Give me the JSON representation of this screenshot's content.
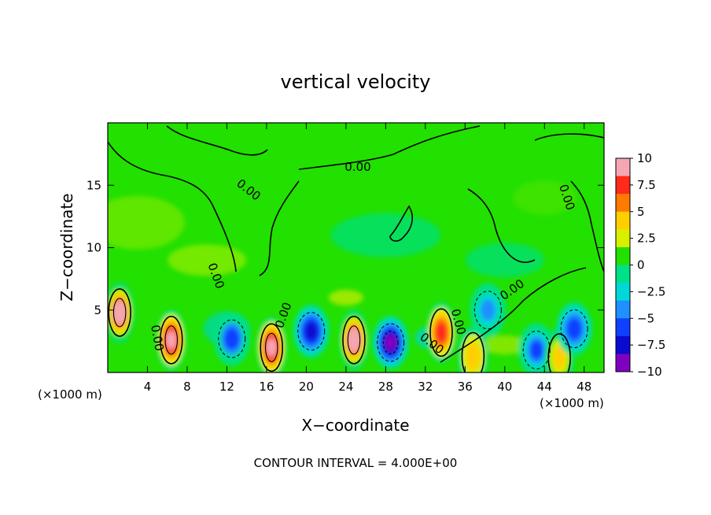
{
  "chart_data": {
    "type": "heatmap",
    "title": "vertical velocity",
    "xlabel": "X−coordinate",
    "ylabel": "Z−coordinate",
    "x_unit_label": "(×1000 m)",
    "z_unit_label": "(×1000 m)",
    "xlim": [
      0,
      50
    ],
    "ylim": [
      0,
      20
    ],
    "x_ticks": [
      4,
      8,
      12,
      16,
      20,
      24,
      28,
      32,
      36,
      40,
      44,
      48
    ],
    "y_ticks": [
      5,
      10,
      15
    ],
    "colorbar": {
      "range": [
        -10,
        10
      ],
      "tick_values": [
        10,
        7.5,
        5,
        2.5,
        0,
        -2.5,
        -5,
        -7.5,
        -10
      ],
      "tick_labels": [
        "10",
        "7.5",
        "5",
        "2.5",
        "0",
        "−2.5",
        "−5",
        "−7.5",
        "−10"
      ],
      "colors": [
        "#f4a6b4",
        "#ff2a1a",
        "#ff7a00",
        "#ffcf00",
        "#d8f000",
        "#22e000",
        "#00e088",
        "#00d8d8",
        "#1e90ff",
        "#1040ff",
        "#0a0ad0",
        "#8000c0"
      ]
    },
    "contour_labels": [
      "0.00",
      "0.00",
      "0.00",
      "0.00",
      "0.00",
      "0.00",
      "0.00",
      "0.00",
      "0.00"
    ],
    "note": "CONTOUR INTERVAL = 4.000E+00",
    "features": [
      {
        "kind": "updraft",
        "x": 1.2,
        "z": 4.8,
        "peak": 10
      },
      {
        "kind": "updraft",
        "x": 6.4,
        "z": 2.6,
        "peak": 8.5
      },
      {
        "kind": "downdraft",
        "x": 12.5,
        "z": 2.7,
        "peak": -5
      },
      {
        "kind": "updraft",
        "x": 16.5,
        "z": 2.0,
        "peak": 8.5
      },
      {
        "kind": "downdraft",
        "x": 20.5,
        "z": 3.3,
        "peak": -7.5
      },
      {
        "kind": "updraft",
        "x": 24.8,
        "z": 2.6,
        "peak": 10
      },
      {
        "kind": "downdraft",
        "x": 28.5,
        "z": 2.4,
        "peak": -9
      },
      {
        "kind": "updraft",
        "x": 33.6,
        "z": 3.2,
        "peak": 7.5
      },
      {
        "kind": "downdraft",
        "x": 38.3,
        "z": 5.0,
        "peak": -4.5
      },
      {
        "kind": "updraft",
        "x": 36.8,
        "z": 1.3,
        "peak": 4
      },
      {
        "kind": "downdraft",
        "x": 43.2,
        "z": 1.8,
        "peak": -6.5
      },
      {
        "kind": "updraft",
        "x": 45.5,
        "z": 1.2,
        "peak": 5
      },
      {
        "kind": "downdraft",
        "x": 47.0,
        "z": 3.5,
        "peak": -5.5
      }
    ]
  }
}
